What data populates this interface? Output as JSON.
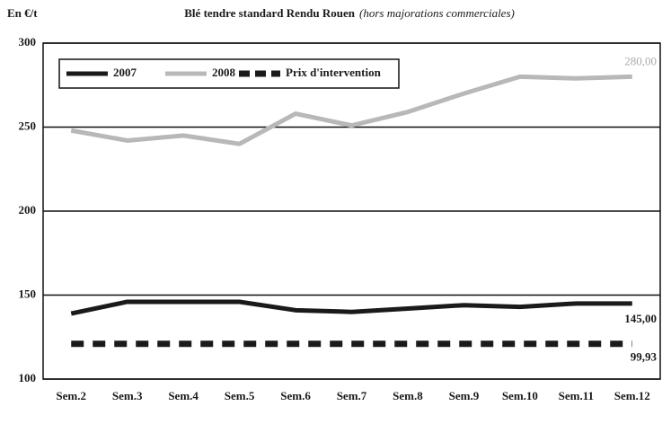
{
  "chart_data": {
    "type": "line",
    "title": "Blé tendre standard Rendu Rouen",
    "subtitle": "(hors majorations commerciales)",
    "y_label": "En €/t",
    "categories": [
      "Sem.2",
      "Sem.3",
      "Sem.4",
      "Sem.5",
      "Sem.6",
      "Sem.7",
      "Sem.8",
      "Sem.9",
      "Sem.10",
      "Sem.11",
      "Sem.12"
    ],
    "series": [
      {
        "name": "2007",
        "color": "#1a1a1a",
        "style": "solid",
        "values": [
          139,
          146,
          146,
          146,
          141,
          140,
          142,
          144,
          143,
          145,
          145
        ],
        "value_labels": [
          null,
          null,
          null,
          null,
          null,
          null,
          null,
          null,
          null,
          null,
          "145,00"
        ]
      },
      {
        "name": "2008",
        "color": "#b8b8b8",
        "style": "solid",
        "values": [
          248,
          242,
          245,
          240,
          258,
          251,
          259,
          270,
          280,
          279,
          280
        ],
        "value_labels": [
          null,
          null,
          null,
          null,
          null,
          null,
          null,
          null,
          null,
          null,
          "280,00"
        ]
      },
      {
        "name": "Prix d'intervention",
        "color": "#1a1a1a",
        "style": "dashed",
        "values": [
          121,
          121,
          121,
          121,
          121,
          121,
          121,
          121,
          121,
          121,
          121
        ]
      }
    ],
    "annotations": [
      {
        "text": "99,93"
      }
    ],
    "ylim": [
      100,
      300
    ],
    "yticks": [
      100,
      150,
      200,
      250,
      300
    ],
    "grid": true,
    "legend": "top-left"
  }
}
